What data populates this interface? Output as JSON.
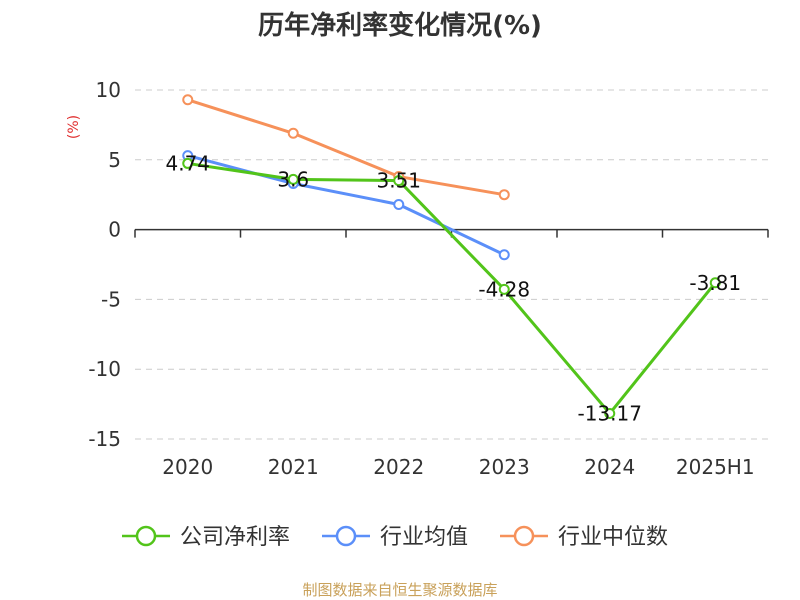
{
  "chart_data": {
    "type": "line",
    "title": "历年净利率变化情况(%)",
    "ylabel": "(%)",
    "xlabel": "",
    "categories": [
      "2020",
      "2021",
      "2022",
      "2023",
      "2024",
      "2025H1"
    ],
    "ylim": [
      -15,
      10
    ],
    "yticks": [
      -15,
      -10,
      -5,
      0,
      5,
      10
    ],
    "grid": true,
    "legend_position": "bottom",
    "series": [
      {
        "name": "公司净利率",
        "color": "#52c41a",
        "values": [
          4.74,
          3.6,
          3.51,
          -4.28,
          -13.17,
          -3.81
        ],
        "labels": [
          "4.74",
          "3.6",
          "3.51",
          "-4.28",
          "-13.17",
          "-3.81"
        ]
      },
      {
        "name": "行业均值",
        "color": "#5b8ff9",
        "values": [
          5.3,
          3.3,
          1.8,
          -1.8,
          null,
          null
        ]
      },
      {
        "name": "行业中位数",
        "color": "#f6915a",
        "values": [
          9.3,
          6.9,
          3.8,
          2.5,
          null,
          null
        ]
      }
    ]
  },
  "ylabel_color": "#e03030",
  "source_text": "制图数据来自恒生聚源数据库",
  "source_color": "#c9a15a"
}
